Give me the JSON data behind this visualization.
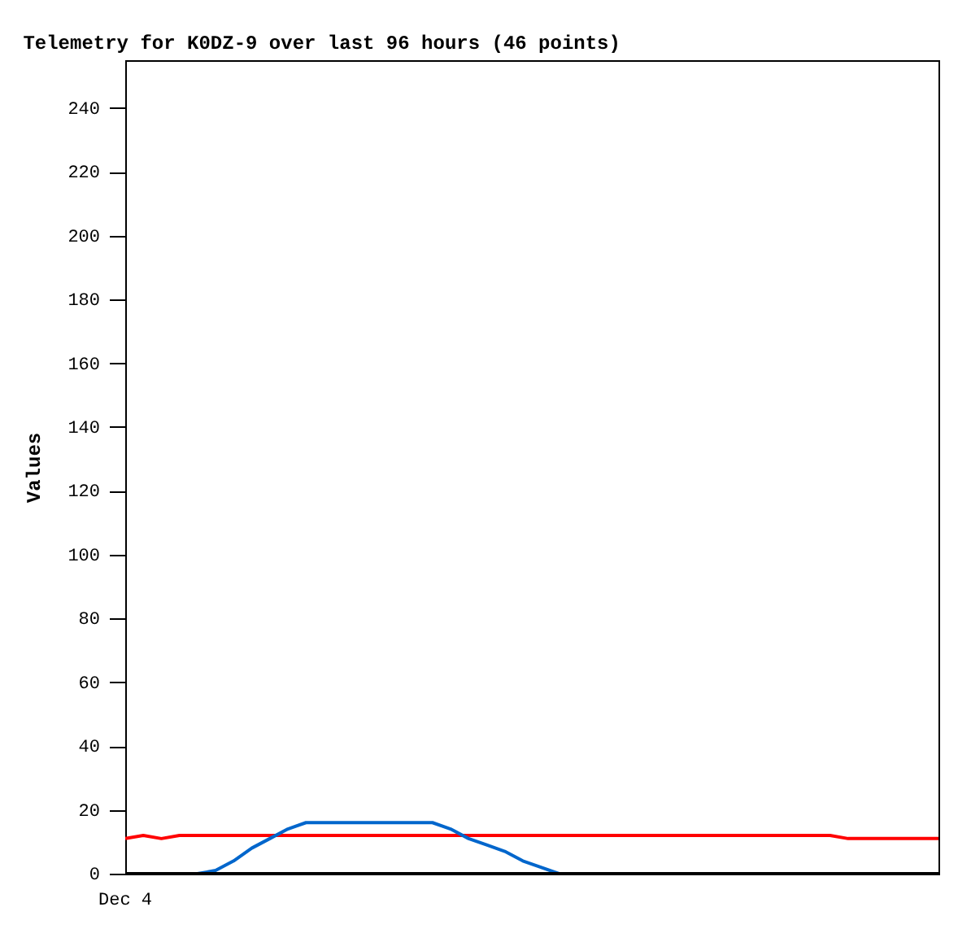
{
  "chart_data": {
    "type": "line",
    "title": "Telemetry for K0DZ-9 over last 96 hours (46 points)",
    "ylabel": "Values",
    "annotations": [
      "Dec 4"
    ],
    "categories": [
      null,
      null,
      null,
      null,
      null,
      null,
      null,
      null,
      null,
      null,
      null,
      null,
      null,
      null,
      null,
      null,
      null,
      null,
      null,
      null,
      null,
      null,
      null,
      null,
      null,
      null,
      null,
      null,
      null,
      null,
      null,
      null,
      null,
      null,
      null,
      null,
      null,
      null,
      null,
      null,
      null,
      null,
      null,
      null,
      null,
      null
    ],
    "ylim": [
      0,
      255
    ],
    "yticks": [
      0,
      20,
      40,
      60,
      80,
      100,
      120,
      140,
      160,
      180,
      200,
      220,
      240
    ],
    "grid": false,
    "series": [
      {
        "color": "#ff0000",
        "values": [
          11,
          12,
          11,
          12,
          12,
          12,
          12,
          12,
          12,
          12,
          12,
          12,
          12,
          12,
          12,
          12,
          12,
          12,
          12,
          12,
          12,
          12,
          12,
          12,
          12,
          12,
          12,
          12,
          12,
          12,
          12,
          12,
          12,
          12,
          12,
          12,
          12,
          12,
          12,
          12,
          11,
          11,
          11,
          11,
          11,
          11
        ]
      },
      {
        "color": "#0066cc",
        "values": [
          null,
          null,
          null,
          null,
          0,
          1,
          4,
          8,
          11,
          14,
          16,
          16,
          16,
          16,
          16,
          16,
          16,
          16,
          14,
          11,
          9,
          7,
          4,
          2,
          0,
          null,
          null,
          null,
          null,
          null,
          null,
          null,
          null,
          null,
          null,
          null,
          null,
          null,
          null,
          null,
          null,
          null,
          null,
          null,
          null,
          null
        ]
      },
      {
        "color": "#000000",
        "values": [
          0,
          0,
          0,
          0,
          0,
          0,
          0,
          0,
          0,
          0,
          0,
          0,
          0,
          0,
          0,
          0,
          0,
          0,
          0,
          0,
          0,
          0,
          0,
          0,
          0,
          0,
          0,
          0,
          0,
          0,
          0,
          0,
          0,
          0,
          0,
          0,
          0,
          0,
          0,
          0,
          0,
          0,
          0,
          0,
          0,
          0
        ]
      }
    ]
  }
}
